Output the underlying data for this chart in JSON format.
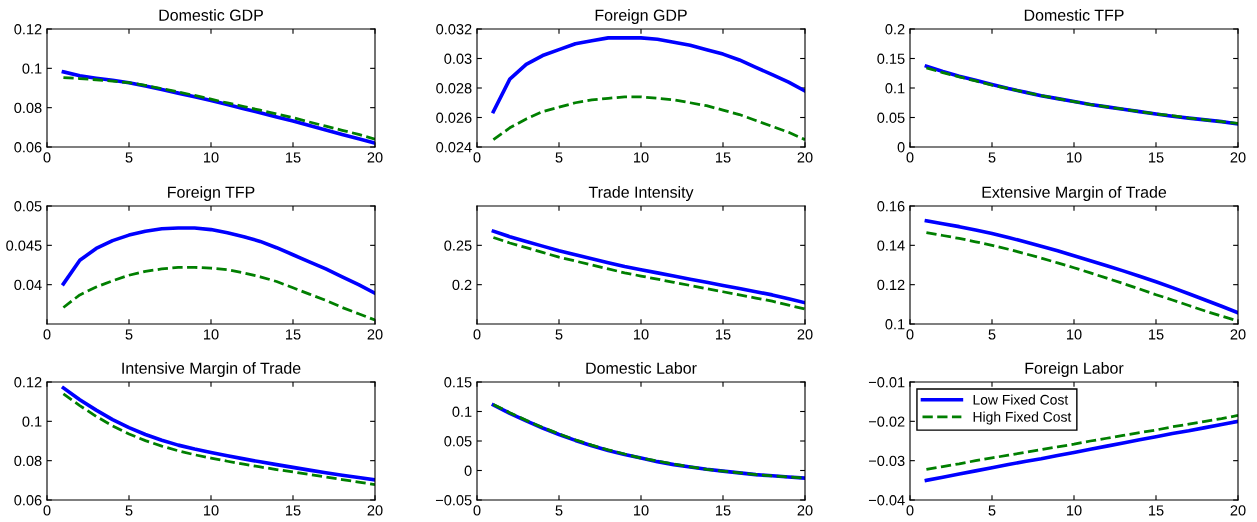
{
  "chart_data": [
    {
      "type": "line",
      "title": "Domestic GDP",
      "x": [
        1,
        2,
        3,
        4,
        5,
        6,
        7,
        8,
        9,
        10,
        11,
        12,
        13,
        14,
        15,
        16,
        17,
        18,
        19,
        20
      ],
      "xlim": [
        0,
        20
      ],
      "xticks": [
        0,
        5,
        10,
        15,
        20
      ],
      "ylim": [
        0.06,
        0.12
      ],
      "yticks": [
        0.06,
        0.08,
        0.1,
        0.12
      ],
      "grid": false,
      "legend": false,
      "series": [
        {
          "color": "#0000ff",
          "line_style": "solid",
          "values": [
            0.0982,
            0.0962,
            0.095,
            0.0939,
            0.0927,
            0.091,
            0.0892,
            0.0874,
            0.0856,
            0.0837,
            0.0816,
            0.0795,
            0.0774,
            0.0753,
            0.0732,
            0.0709,
            0.0687,
            0.0664,
            0.0642,
            0.062
          ]
        },
        {
          "color": "#007f00",
          "line_style": "dashed",
          "values": [
            0.0953,
            0.0948,
            0.0942,
            0.0935,
            0.0927,
            0.0913,
            0.0897,
            0.088,
            0.0862,
            0.0843,
            0.0824,
            0.0806,
            0.0787,
            0.0768,
            0.0749,
            0.0727,
            0.0706,
            0.0685,
            0.0664,
            0.064
          ]
        }
      ]
    },
    {
      "type": "line",
      "title": "Foreign GDP",
      "x": [
        1,
        2,
        3,
        4,
        5,
        6,
        7,
        8,
        9,
        10,
        11,
        12,
        13,
        14,
        15,
        16,
        17,
        18,
        19,
        20
      ],
      "xlim": [
        0,
        20
      ],
      "xticks": [
        0,
        5,
        10,
        15,
        20
      ],
      "ylim": [
        0.024,
        0.032
      ],
      "yticks": [
        0.024,
        0.026,
        0.028,
        0.03,
        0.032
      ],
      "grid": false,
      "legend": false,
      "series": [
        {
          "color": "#0000ff",
          "line_style": "solid",
          "values": [
            0.0264,
            0.0286,
            0.0296,
            0.0302,
            0.0306,
            0.031,
            0.0312,
            0.0314,
            0.0314,
            0.0314,
            0.0313,
            0.0311,
            0.0309,
            0.0306,
            0.0303,
            0.0299,
            0.0294,
            0.0289,
            0.0284,
            0.0278
          ]
        },
        {
          "color": "#007f00",
          "line_style": "dashed",
          "values": [
            0.0245,
            0.0253,
            0.0259,
            0.0264,
            0.0267,
            0.027,
            0.0272,
            0.0273,
            0.0274,
            0.0274,
            0.0273,
            0.0272,
            0.027,
            0.0268,
            0.0265,
            0.0262,
            0.0258,
            0.0254,
            0.025,
            0.0245
          ]
        }
      ]
    },
    {
      "type": "line",
      "title": "Domestic TFP",
      "x": [
        1,
        2,
        3,
        4,
        5,
        6,
        7,
        8,
        9,
        10,
        11,
        12,
        13,
        14,
        15,
        16,
        17,
        18,
        19,
        20
      ],
      "xlim": [
        0,
        20
      ],
      "xticks": [
        0,
        5,
        10,
        15,
        20
      ],
      "ylim": [
        0,
        0.2
      ],
      "yticks": [
        0,
        0.05,
        0.1,
        0.15,
        0.2
      ],
      "grid": false,
      "legend": false,
      "series": [
        {
          "color": "#0000ff",
          "line_style": "solid",
          "values": [
            0.137,
            0.128,
            0.12,
            0.113,
            0.106,
            0.099,
            0.093,
            0.087,
            0.082,
            0.077,
            0.072,
            0.068,
            0.064,
            0.06,
            0.056,
            0.052,
            0.049,
            0.046,
            0.043,
            0.039
          ]
        },
        {
          "color": "#007f00",
          "line_style": "dashed",
          "values": [
            0.134,
            0.126,
            0.119,
            0.112,
            0.105,
            0.099,
            0.093,
            0.087,
            0.082,
            0.077,
            0.072,
            0.068,
            0.064,
            0.06,
            0.056,
            0.053,
            0.049,
            0.046,
            0.043,
            0.04
          ]
        }
      ]
    },
    {
      "type": "line",
      "title": "Foreign TFP",
      "x": [
        1,
        2,
        3,
        4,
        5,
        6,
        7,
        8,
        9,
        10,
        11,
        12,
        13,
        14,
        15,
        16,
        17,
        18,
        19,
        20
      ],
      "xlim": [
        0,
        20
      ],
      "xticks": [
        0,
        5,
        10,
        15,
        20
      ],
      "ylim": [
        0.035,
        0.05
      ],
      "yticks": [
        0.04,
        0.045,
        0.05
      ],
      "grid": false,
      "legend": false,
      "series": [
        {
          "color": "#0000ff",
          "line_style": "solid",
          "values": [
            0.0401,
            0.0431,
            0.0446,
            0.0456,
            0.0463,
            0.0468,
            0.0471,
            0.0472,
            0.0472,
            0.047,
            0.0466,
            0.0461,
            0.0455,
            0.0447,
            0.0438,
            0.0429,
            0.042,
            0.041,
            0.04,
            0.0389
          ]
        },
        {
          "color": "#007f00",
          "line_style": "dashed",
          "values": [
            0.0371,
            0.0387,
            0.0397,
            0.0405,
            0.0412,
            0.0417,
            0.042,
            0.0422,
            0.0422,
            0.0421,
            0.0419,
            0.0415,
            0.041,
            0.0404,
            0.0396,
            0.0388,
            0.038,
            0.0371,
            0.0363,
            0.0355
          ]
        }
      ]
    },
    {
      "type": "line",
      "title": "Trade Intensity",
      "x": [
        1,
        2,
        3,
        4,
        5,
        6,
        7,
        8,
        9,
        10,
        11,
        12,
        13,
        14,
        15,
        16,
        17,
        18,
        19,
        20
      ],
      "xlim": [
        0,
        20
      ],
      "xticks": [
        0,
        5,
        10,
        15,
        20
      ],
      "ylim": [
        0.15,
        0.3
      ],
      "yticks": [
        0.2,
        0.25
      ],
      "grid": false,
      "legend": false,
      "series": [
        {
          "color": "#0000ff",
          "line_style": "solid",
          "values": [
            0.268,
            0.261,
            0.255,
            0.249,
            0.243,
            0.238,
            0.233,
            0.228,
            0.223,
            0.219,
            0.215,
            0.211,
            0.207,
            0.203,
            0.199,
            0.195,
            0.191,
            0.187,
            0.182,
            0.177
          ]
        },
        {
          "color": "#007f00",
          "line_style": "dashed",
          "values": [
            0.26,
            0.253,
            0.247,
            0.241,
            0.235,
            0.23,
            0.225,
            0.22,
            0.215,
            0.211,
            0.207,
            0.203,
            0.199,
            0.195,
            0.191,
            0.187,
            0.183,
            0.179,
            0.174,
            0.169
          ]
        }
      ]
    },
    {
      "type": "line",
      "title": "Extensive Margin of Trade",
      "x": [
        1,
        2,
        3,
        4,
        5,
        6,
        7,
        8,
        9,
        10,
        11,
        12,
        13,
        14,
        15,
        16,
        17,
        18,
        19,
        20
      ],
      "xlim": [
        0,
        20
      ],
      "xticks": [
        0,
        5,
        10,
        15,
        20
      ],
      "ylim": [
        0.1,
        0.16
      ],
      "yticks": [
        0.1,
        0.12,
        0.14,
        0.16
      ],
      "grid": false,
      "legend": false,
      "series": [
        {
          "color": "#0000ff",
          "line_style": "solid",
          "values": [
            0.1525,
            0.151,
            0.1495,
            0.1478,
            0.146,
            0.144,
            0.1418,
            0.1395,
            0.1372,
            0.1347,
            0.1322,
            0.1296,
            0.127,
            0.1243,
            0.1215,
            0.1185,
            0.1154,
            0.1122,
            0.109,
            0.1057
          ]
        },
        {
          "color": "#007f00",
          "line_style": "dashed",
          "values": [
            0.1465,
            0.145,
            0.1435,
            0.1418,
            0.14,
            0.138,
            0.1358,
            0.1335,
            0.1311,
            0.1286,
            0.126,
            0.1233,
            0.1206,
            0.1178,
            0.1149,
            0.1122,
            0.1094,
            0.1066,
            0.104,
            0.1015
          ]
        }
      ]
    },
    {
      "type": "line",
      "title": "Intensive Margin of Trade",
      "x": [
        1,
        2,
        3,
        4,
        5,
        6,
        7,
        8,
        9,
        10,
        11,
        12,
        13,
        14,
        15,
        16,
        17,
        18,
        19,
        20
      ],
      "xlim": [
        0,
        20
      ],
      "xticks": [
        0,
        5,
        10,
        15,
        20
      ],
      "ylim": [
        0.06,
        0.12
      ],
      "yticks": [
        0.06,
        0.08,
        0.1,
        0.12
      ],
      "grid": false,
      "legend": false,
      "series": [
        {
          "color": "#0000ff",
          "line_style": "solid",
          "values": [
            0.117,
            0.111,
            0.1057,
            0.1009,
            0.0968,
            0.0933,
            0.0904,
            0.0879,
            0.0859,
            0.0842,
            0.0825,
            0.0809,
            0.0794,
            0.078,
            0.0766,
            0.0752,
            0.0739,
            0.0726,
            0.0714,
            0.0702
          ]
        },
        {
          "color": "#007f00",
          "line_style": "dashed",
          "values": [
            0.114,
            0.108,
            0.1025,
            0.0977,
            0.0936,
            0.0902,
            0.0874,
            0.085,
            0.083,
            0.0813,
            0.0797,
            0.0782,
            0.0768,
            0.0755,
            0.0743,
            0.073,
            0.0717,
            0.0704,
            0.0691,
            0.0678
          ]
        }
      ]
    },
    {
      "type": "line",
      "title": "Domestic Labor",
      "x": [
        1,
        2,
        3,
        4,
        5,
        6,
        7,
        8,
        9,
        10,
        11,
        12,
        13,
        14,
        15,
        16,
        17,
        18,
        19,
        20
      ],
      "xlim": [
        0,
        20
      ],
      "xticks": [
        0,
        5,
        10,
        15,
        20
      ],
      "ylim": [
        -0.05,
        0.15
      ],
      "yticks": [
        -0.05,
        0,
        0.05,
        0.1,
        0.15
      ],
      "grid": false,
      "legend": false,
      "series": [
        {
          "color": "#0000ff",
          "line_style": "solid",
          "values": [
            0.111,
            0.097,
            0.084,
            0.072,
            0.061,
            0.051,
            0.042,
            0.034,
            0.027,
            0.021,
            0.015,
            0.01,
            0.006,
            0.002,
            -0.001,
            -0.004,
            -0.007,
            -0.009,
            -0.011,
            -0.013
          ]
        },
        {
          "color": "#007f00",
          "line_style": "dashed",
          "values": [
            0.112,
            0.098,
            0.085,
            0.073,
            0.062,
            0.052,
            0.043,
            0.035,
            0.028,
            0.021,
            0.016,
            0.011,
            0.006,
            0.002,
            -0.001,
            -0.004,
            -0.007,
            -0.009,
            -0.011,
            -0.013
          ]
        }
      ]
    },
    {
      "type": "line",
      "title": "Foreign Labor",
      "x": [
        1,
        2,
        3,
        4,
        5,
        6,
        7,
        8,
        9,
        10,
        11,
        12,
        13,
        14,
        15,
        16,
        17,
        18,
        19,
        20
      ],
      "xlim": [
        0,
        20
      ],
      "xticks": [
        0,
        5,
        10,
        15,
        20
      ],
      "ylim": [
        -0.04,
        -0.01
      ],
      "yticks": [
        -0.04,
        -0.03,
        -0.02,
        -0.01
      ],
      "grid": false,
      "legend": "top left",
      "series": [
        {
          "name": "Low Fixed Cost",
          "color": "#0000ff",
          "line_style": "solid",
          "values": [
            -0.035,
            -0.0342,
            -0.0334,
            -0.0326,
            -0.0318,
            -0.031,
            -0.0302,
            -0.0295,
            -0.0287,
            -0.0279,
            -0.0271,
            -0.0263,
            -0.0255,
            -0.0247,
            -0.0239,
            -0.0231,
            -0.0224,
            -0.0216,
            -0.0208,
            -0.02
          ]
        },
        {
          "name": "High Fixed Cost",
          "color": "#007f00",
          "line_style": "dashed",
          "values": [
            -0.0322,
            -0.0315,
            -0.0308,
            -0.03,
            -0.0293,
            -0.0286,
            -0.0279,
            -0.0272,
            -0.0265,
            -0.0258,
            -0.025,
            -0.0243,
            -0.0236,
            -0.0229,
            -0.0222,
            -0.0214,
            -0.0207,
            -0.02,
            -0.0193,
            -0.0185
          ]
        }
      ]
    }
  ]
}
